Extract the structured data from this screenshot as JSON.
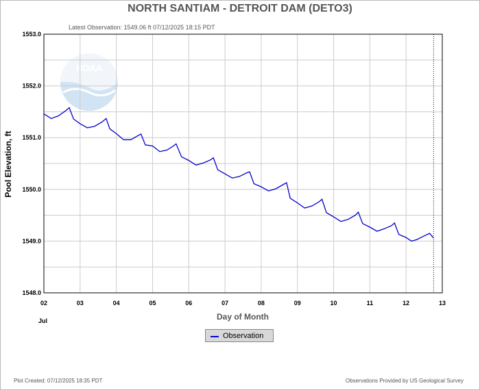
{
  "title": "NORTH SANTIAM - DETROIT DAM  (DETO3)",
  "subtitle": "Latest Observation: 1549.06 ft 07/12/2025 18:15 PDT",
  "footer": {
    "created": "Plot Created: 07/12/2025 18:35 PDT",
    "source": "Observations Provided by US Geological Survey"
  },
  "colors": {
    "series": "#0000cc",
    "grid": "#cccccc",
    "axis_text": "#555555"
  },
  "logo": {
    "text": "NOAA"
  },
  "chart_data": {
    "type": "line",
    "title": "NORTH SANTIAM - DETROIT DAM  (DETO3)",
    "xlabel": "Day of Month",
    "xlabel_secondary": "Jul",
    "ylabel": "Pool Elevation, ft",
    "xlim": [
      2,
      13
    ],
    "ylim": [
      1548.0,
      1553.0
    ],
    "grid": true,
    "legend_position": "bottom-center",
    "x_ticks": [
      "02",
      "03",
      "04",
      "05",
      "06",
      "07",
      "08",
      "09",
      "10",
      "11",
      "12",
      "13"
    ],
    "y_ticks": [
      "1548.0",
      "1549.0",
      "1550.0",
      "1551.0",
      "1552.0",
      "1553.0"
    ],
    "current_time_marker": 12.76,
    "series": [
      {
        "name": "Observation",
        "x": [
          2.0,
          2.2,
          2.4,
          2.6,
          2.7,
          2.82,
          3.0,
          3.2,
          3.4,
          3.6,
          3.72,
          3.82,
          4.0,
          4.2,
          4.4,
          4.6,
          4.68,
          4.8,
          5.0,
          5.2,
          5.4,
          5.6,
          5.65,
          5.8,
          6.0,
          6.2,
          6.4,
          6.6,
          6.68,
          6.8,
          7.0,
          7.2,
          7.4,
          7.6,
          7.68,
          7.8,
          8.0,
          8.2,
          8.4,
          8.6,
          8.7,
          8.8,
          9.0,
          9.2,
          9.4,
          9.6,
          9.68,
          9.8,
          10.0,
          10.2,
          10.4,
          10.6,
          10.68,
          10.8,
          11.0,
          11.2,
          11.4,
          11.6,
          11.68,
          11.8,
          12.0,
          12.15,
          12.3,
          12.5,
          12.65,
          12.76
        ],
        "y": [
          1551.46,
          1551.37,
          1551.42,
          1551.52,
          1551.58,
          1551.36,
          1551.27,
          1551.19,
          1551.22,
          1551.3,
          1551.37,
          1551.17,
          1551.08,
          1550.96,
          1550.96,
          1551.04,
          1551.07,
          1550.86,
          1550.84,
          1550.73,
          1550.76,
          1550.85,
          1550.88,
          1550.63,
          1550.56,
          1550.47,
          1550.51,
          1550.57,
          1550.61,
          1550.38,
          1550.3,
          1550.22,
          1550.25,
          1550.32,
          1550.34,
          1550.11,
          1550.05,
          1549.97,
          1550.01,
          1550.09,
          1550.13,
          1549.83,
          1549.74,
          1549.64,
          1549.68,
          1549.76,
          1549.81,
          1549.55,
          1549.47,
          1549.38,
          1549.42,
          1549.5,
          1549.56,
          1549.34,
          1549.27,
          1549.19,
          1549.24,
          1549.3,
          1549.35,
          1549.13,
          1549.07,
          1549.0,
          1549.03,
          1549.1,
          1549.15,
          1549.06
        ]
      }
    ]
  }
}
